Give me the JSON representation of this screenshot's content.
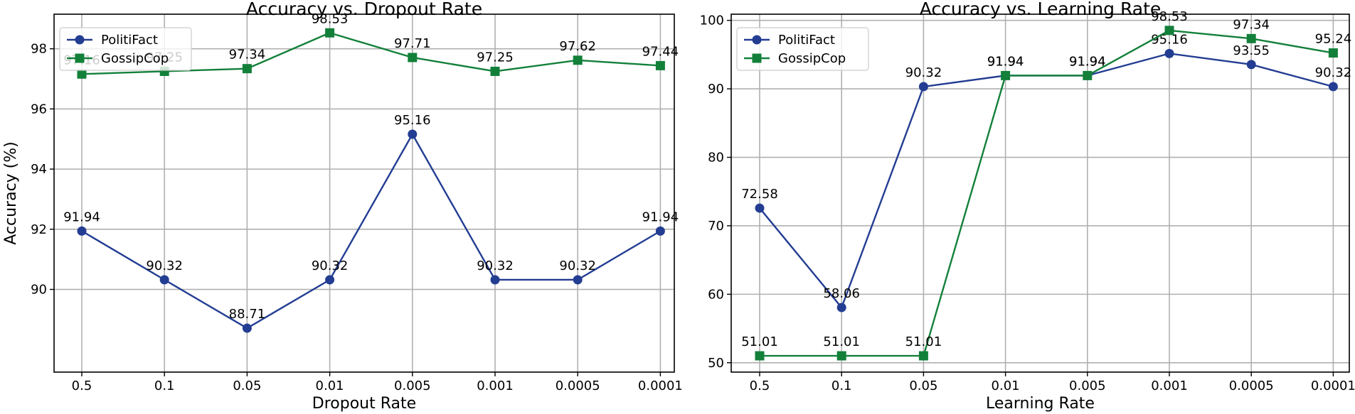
{
  "chart_data": [
    {
      "type": "line",
      "title": "Accuracy vs. Dropout Rate",
      "xlabel": "Dropout Rate",
      "ylabel": "Accuracy (%)",
      "categories": [
        "0.5",
        "0.1",
        "0.05",
        "0.01",
        "0.005",
        "0.001",
        "0.0005",
        "0.0001"
      ],
      "ylim": [
        87.25,
        99.15
      ],
      "yticks": [
        90,
        92,
        94,
        96,
        98
      ],
      "grid": true,
      "legend_position": "top-left",
      "series": [
        {
          "name": "PolitiFact",
          "color": "#233d92",
          "marker": "circle",
          "values": [
            91.94,
            90.32,
            88.71,
            90.32,
            95.16,
            90.32,
            90.32,
            91.94
          ]
        },
        {
          "name": "GossipCop",
          "color": "#13803a",
          "marker": "square",
          "values": [
            97.16,
            97.25,
            97.34,
            98.53,
            97.71,
            97.25,
            97.62,
            97.44
          ]
        }
      ]
    },
    {
      "type": "line",
      "title": "Accuracy vs. Learning Rate",
      "xlabel": "Learning Rate",
      "ylabel": "",
      "categories": [
        "0.5",
        "0.1",
        "0.05",
        "0.01",
        "0.005",
        "0.001",
        "0.0005",
        "0.0001"
      ],
      "ylim": [
        48.63,
        100.9
      ],
      "yticks": [
        50,
        60,
        70,
        80,
        90,
        100
      ],
      "grid": true,
      "legend_position": "top-left",
      "series": [
        {
          "name": "PolitiFact",
          "color": "#233d92",
          "marker": "circle",
          "values": [
            72.58,
            58.06,
            90.32,
            91.94,
            91.94,
            95.16,
            93.55,
            90.32
          ]
        },
        {
          "name": "GossipCop",
          "color": "#13803a",
          "marker": "square",
          "values": [
            51.01,
            51.01,
            51.01,
            91.94,
            91.94,
            98.53,
            97.34,
            95.24
          ]
        }
      ]
    }
  ]
}
